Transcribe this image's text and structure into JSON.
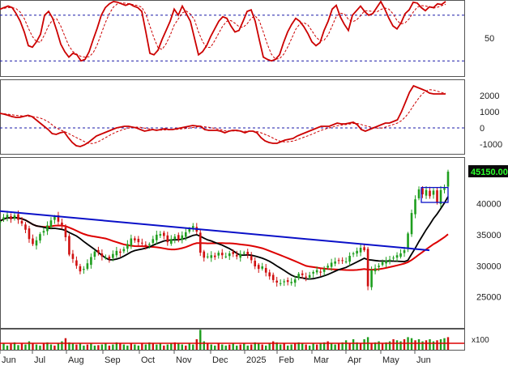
{
  "chart_data": [
    {
      "type": "line",
      "panel": "oscillator",
      "y_ticks": [
        "50"
      ],
      "y_tick_values": [
        50
      ],
      "ylim": [
        0,
        100
      ],
      "reference_lines": [
        80,
        20
      ],
      "series": [
        {
          "role": "main",
          "color": "#cc0000",
          "x": [
            0,
            5,
            10,
            15,
            20,
            25,
            30,
            35,
            40,
            45,
            50,
            55,
            60,
            65,
            70,
            75,
            80,
            85,
            90,
            95,
            100,
            105,
            110,
            115,
            120,
            125,
            130,
            135,
            140,
            145,
            150,
            155,
            160,
            165,
            170,
            175,
            180,
            185,
            190,
            195,
            200,
            205,
            210,
            215,
            220,
            225,
            230,
            235,
            240,
            245,
            250,
            255,
            260,
            265,
            270,
            275,
            280,
            285,
            290,
            295,
            300,
            305,
            310,
            315,
            320,
            325,
            330,
            335,
            340,
            345,
            350,
            355,
            360,
            365,
            370,
            375,
            380,
            385,
            390,
            395,
            400,
            405,
            410,
            415,
            420,
            425,
            430,
            435,
            440,
            445,
            450,
            455,
            460,
            465,
            470,
            475,
            480,
            485,
            490,
            495,
            500,
            505,
            510,
            515,
            520,
            525,
            530,
            535,
            540,
            545,
            550
          ],
          "y": [
            88,
            90,
            92,
            90,
            82,
            72,
            58,
            40,
            38,
            45,
            55,
            80,
            85,
            76,
            60,
            42,
            32,
            25,
            30,
            28,
            20,
            22,
            32,
            48,
            63,
            80,
            90,
            95,
            98,
            97,
            95,
            93,
            95,
            92,
            90,
            85,
            58,
            30,
            28,
            34,
            48,
            60,
            72,
            88,
            80,
            92,
            82,
            72,
            50,
            28,
            32,
            40,
            52,
            62,
            72,
            78,
            76,
            66,
            58,
            60,
            72,
            85,
            87,
            72,
            48,
            25,
            22,
            20,
            22,
            28,
            44,
            58,
            68,
            76,
            72,
            65,
            56,
            45,
            40,
            44,
            60,
            72,
            88,
            93,
            78,
            68,
            60,
            80,
            86,
            92,
            85,
            80,
            82,
            90,
            98,
            88,
            76,
            66,
            62,
            70,
            82,
            87,
            97,
            96,
            90,
            86,
            91,
            90,
            95,
            94,
            98
          ],
          "x_range_note": "days"
        },
        {
          "role": "signal",
          "color": "#cc0000",
          "dashed": true
        }
      ]
    },
    {
      "type": "line",
      "panel": "macd",
      "y_ticks": [
        "2000",
        "1000",
        "0",
        "-1000"
      ],
      "y_tick_values": [
        2000,
        1000,
        0,
        -1000
      ],
      "ylim": [
        -1600,
        3000
      ],
      "reference_lines": [
        0
      ],
      "series": [
        {
          "role": "main",
          "color": "#cc0000",
          "y": [
            900,
            850,
            780,
            700,
            650,
            660,
            720,
            780,
            700,
            500,
            300,
            100,
            -100,
            -350,
            -400,
            -300,
            -250,
            -600,
            -900,
            -1100,
            -1150,
            -1050,
            -900,
            -700,
            -500,
            -400,
            -300,
            -200,
            -100,
            0,
            50,
            100,
            100,
            50,
            0,
            -100,
            -200,
            -150,
            -100,
            -150,
            -100,
            -50,
            -100,
            -100,
            -50,
            0,
            50,
            100,
            150,
            120,
            100,
            -100,
            -150,
            -150,
            -150,
            -200,
            -300,
            -200,
            -150,
            -150,
            -200,
            -300,
            -200,
            -200,
            -300,
            -600,
            -800,
            -900,
            -950,
            -950,
            -850,
            -750,
            -700,
            -650,
            -500,
            -400,
            -300,
            -200,
            -100,
            0,
            100,
            100,
            100,
            200,
            300,
            250,
            250,
            300,
            350,
            200,
            -100,
            -200,
            -100,
            0,
            100,
            200,
            300,
            300,
            400,
            500,
            1000,
            1600,
            2200,
            2600,
            2500,
            2400,
            2300,
            2150,
            2100,
            2100,
            2100,
            2100
          ]
        },
        {
          "role": "signal",
          "color": "#cc0000",
          "dashed": true
        }
      ]
    },
    {
      "type": "candlestick",
      "panel": "price",
      "last_price_label": "45150.00",
      "last_price": 45150,
      "y_ticks": [
        "40000",
        "35000",
        "30000",
        "25000"
      ],
      "y_tick_values": [
        40000,
        35000,
        30000,
        25000
      ],
      "ylim": [
        20000,
        47500
      ],
      "x_tick_labels": [
        "Jun",
        "Jul",
        "Aug",
        "Sep",
        "Oct",
        "Nov",
        "Dec",
        "2025",
        "Feb",
        "Mar",
        "Apr",
        "May",
        "Jun"
      ],
      "x_tick_days": [
        0,
        40,
        82,
        127,
        172,
        215,
        260,
        302,
        342,
        385,
        427,
        470,
        512
      ],
      "close": [
        37200,
        37800,
        38200,
        37500,
        38100,
        37400,
        36800,
        35800,
        34300,
        33500,
        34100,
        35100,
        35600,
        36500,
        37300,
        37900,
        37100,
        36400,
        34600,
        31800,
        31100,
        30000,
        29100,
        29500,
        30400,
        31400,
        32300,
        32100,
        31500,
        31300,
        31100,
        31900,
        32400,
        32100,
        32700,
        33500,
        34400,
        34100,
        33800,
        33600,
        33200,
        33500,
        34300,
        35000,
        35100,
        34800,
        33800,
        34300,
        34700,
        34200,
        34900,
        35400,
        35900,
        36400,
        35500,
        32100,
        31300,
        31500,
        31700,
        31400,
        32100,
        31700,
        31500,
        32000,
        31900,
        31500,
        31900,
        32100,
        31800,
        30900,
        29900,
        29500,
        29900,
        28900,
        28300,
        27700,
        27300,
        27200,
        27500,
        27400,
        27400,
        27800,
        28700,
        28500,
        28100,
        28500,
        29000,
        29300,
        28900,
        29500,
        30000,
        30500,
        30700,
        30800,
        30900,
        30700,
        31600,
        32000,
        32400,
        32900,
        32500,
        26700,
        29300,
        29600,
        30000,
        30600,
        30800,
        31000,
        31300,
        31700,
        32000,
        32500,
        35200,
        38500,
        40700,
        42300,
        41500,
        42200,
        41200,
        42100,
        40200,
        42200,
        42500,
        45150
      ],
      "trend_line_day": [
        0,
        530
      ],
      "trend_line_price": [
        38800,
        32500
      ],
      "box_day": [
        520,
        553
      ],
      "box_price": [
        40200,
        42600
      ],
      "series": [
        {
          "role": "ma-short",
          "color": "#000000"
        },
        {
          "role": "ma-long",
          "color": "#dd0000"
        },
        {
          "role": "trendline",
          "color": "#0000cc"
        }
      ]
    },
    {
      "type": "bar",
      "panel": "volume",
      "y_ticks": [
        "x100"
      ],
      "volume_rel": [
        0.25,
        0.3,
        0.2,
        0.28,
        0.35,
        0.22,
        0.3,
        0.25,
        0.4,
        0.3,
        0.25,
        0.2,
        0.3,
        0.35,
        0.25,
        0.2,
        0.3,
        0.4,
        0.55,
        0.35,
        0.3,
        0.25,
        0.3,
        0.2,
        0.25,
        0.3,
        0.2,
        0.22,
        0.25,
        0.3,
        0.2,
        0.25,
        0.35,
        0.3,
        0.25,
        0.2,
        0.3,
        0.25,
        0.2,
        0.3,
        0.25,
        0.35,
        0.3,
        0.25,
        0.3,
        0.2,
        0.25,
        0.3,
        0.35,
        0.3,
        0.25,
        0.2,
        0.3,
        0.25,
        0.5,
        0.95,
        0.4,
        0.3,
        0.25,
        0.2,
        0.3,
        0.25,
        0.2,
        0.25,
        0.3,
        0.2,
        0.25,
        0.3,
        0.2,
        0.25,
        0.35,
        0.3,
        0.25,
        0.2,
        0.3,
        0.4,
        0.35,
        0.25,
        0.3,
        0.2,
        0.25,
        0.3,
        0.35,
        0.3,
        0.25,
        0.2,
        0.3,
        0.25,
        0.3,
        0.35,
        0.4,
        0.3,
        0.25,
        0.3,
        0.35,
        0.45,
        0.3,
        0.5,
        0.35,
        0.3,
        0.5,
        0.6,
        0.3,
        0.35,
        0.4,
        0.3,
        0.35,
        0.4,
        0.5,
        0.45,
        0.4,
        0.5,
        0.6,
        0.55,
        0.45,
        0.5,
        0.4,
        0.45,
        0.5,
        0.4,
        0.45,
        0.5,
        0.55,
        0.6
      ]
    }
  ]
}
